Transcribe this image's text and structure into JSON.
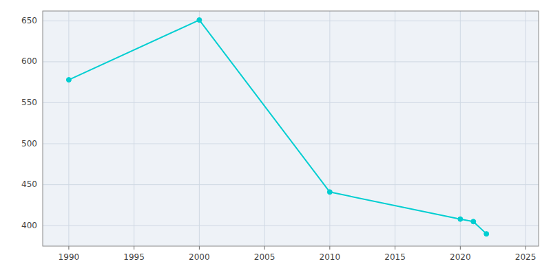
{
  "chart_data": {
    "type": "line",
    "x": [
      1990,
      2000,
      2010,
      2020,
      2021,
      2022
    ],
    "values": [
      578,
      651,
      441,
      408,
      405,
      390
    ],
    "color": "#00CED1",
    "marker": "circle",
    "xlim": [
      1988,
      2026
    ],
    "ylim": [
      375,
      662
    ],
    "xticks": [
      1990,
      1995,
      2000,
      2005,
      2010,
      2015,
      2020,
      2025
    ],
    "yticks": [
      400,
      450,
      500,
      550,
      600,
      650
    ],
    "grid": true
  }
}
